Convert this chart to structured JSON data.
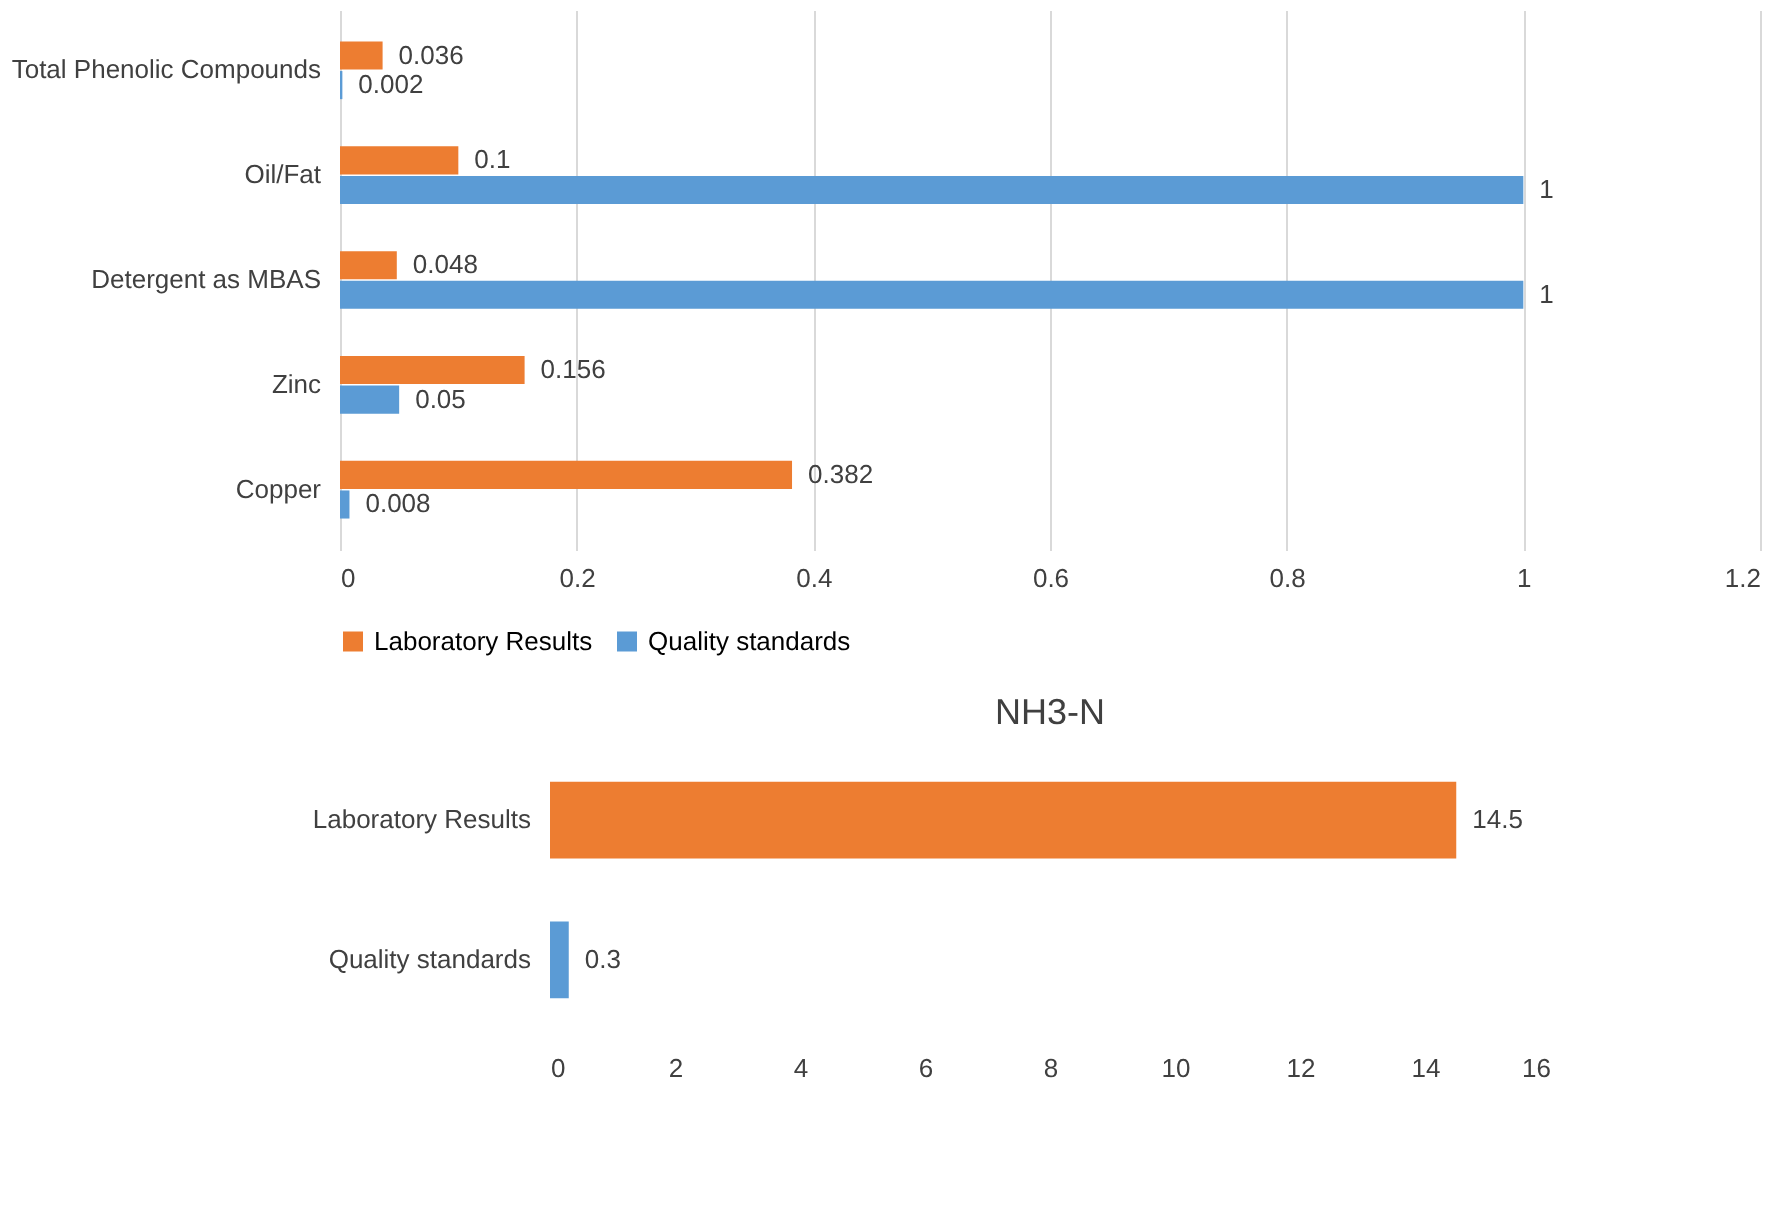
{
  "chart_data": [
    {
      "type": "bar",
      "orientation": "horizontal",
      "categories": [
        "Total Phenolic Compounds",
        "Oil/Fat",
        "Detergent as MBAS",
        "Zinc",
        "Copper"
      ],
      "series": [
        {
          "name": "Laboratory Results",
          "color": "#ed7d31",
          "values": [
            0.036,
            0.1,
            0.048,
            0.156,
            0.382
          ]
        },
        {
          "name": "Quality standards",
          "color": "#5b9bd5",
          "values": [
            0.002,
            1,
            1,
            0.05,
            0.008
          ]
        }
      ],
      "xlim": [
        0,
        1.2
      ],
      "xticks": [
        0,
        0.2,
        0.4,
        0.6,
        0.8,
        1,
        1.2
      ],
      "grid": "x",
      "legend": "bottom",
      "data_labels": true
    },
    {
      "type": "bar",
      "orientation": "horizontal",
      "title": "NH3-N",
      "categories": [
        "Laboratory Results",
        "Quality standards"
      ],
      "values": [
        14.5,
        0.3
      ],
      "colors": [
        "#ed7d31",
        "#5b9bd5"
      ],
      "xlim": [
        0,
        16
      ],
      "xticks": [
        0,
        2,
        4,
        6,
        8,
        10,
        12,
        14,
        16
      ],
      "data_labels": true
    }
  ]
}
